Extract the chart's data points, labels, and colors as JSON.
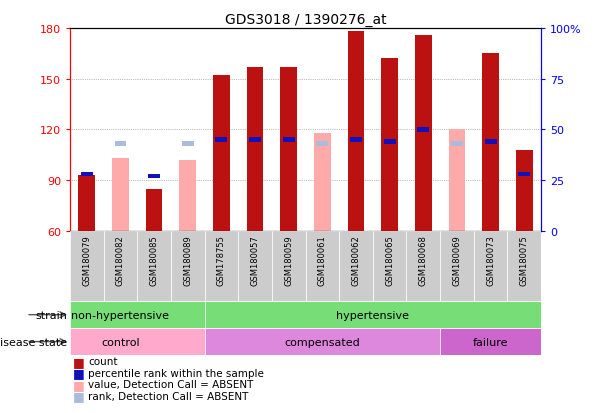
{
  "title": "GDS3018 / 1390276_at",
  "samples": [
    "GSM180079",
    "GSM180082",
    "GSM180085",
    "GSM180089",
    "GSM178755",
    "GSM180057",
    "GSM180059",
    "GSM180061",
    "GSM180062",
    "GSM180065",
    "GSM180068",
    "GSM180069",
    "GSM180073",
    "GSM180075"
  ],
  "count_values": [
    93,
    0,
    85,
    0,
    152,
    157,
    157,
    0,
    178,
    162,
    176,
    0,
    165,
    108
  ],
  "percentile_values": [
    28,
    0,
    27,
    0,
    45,
    45,
    45,
    0,
    45,
    44,
    50,
    0,
    44,
    28
  ],
  "absent_value_values": [
    0,
    103,
    0,
    102,
    0,
    0,
    0,
    118,
    0,
    0,
    0,
    120,
    0,
    0
  ],
  "absent_rank_values": [
    0,
    43,
    0,
    43,
    0,
    0,
    0,
    43,
    0,
    0,
    0,
    43,
    0,
    0
  ],
  "ylim_left": [
    60,
    180
  ],
  "ylim_right": [
    0,
    100
  ],
  "yticks_left": [
    60,
    90,
    120,
    150,
    180
  ],
  "yticks_right": [
    0,
    25,
    50,
    75,
    100
  ],
  "ytick_labels_right": [
    "0",
    "25",
    "50",
    "75",
    "100%"
  ],
  "color_count": "#bb1111",
  "color_percentile": "#1111bb",
  "color_absent_value": "#ffaaaa",
  "color_absent_rank": "#aabbdd",
  "bar_width": 0.5,
  "legend_items": [
    {
      "label": "count",
      "color": "#bb1111"
    },
    {
      "label": "percentile rank within the sample",
      "color": "#1111bb"
    },
    {
      "label": "value, Detection Call = ABSENT",
      "color": "#ffaaaa"
    },
    {
      "label": "rank, Detection Call = ABSENT",
      "color": "#aabbdd"
    }
  ],
  "strain_divider": 3.5,
  "disease_dividers": [
    3.5,
    10.5
  ],
  "xtick_area_color": "#cccccc",
  "strain_color": "#77dd77",
  "control_color": "#ffaacc",
  "compensated_color": "#dd88dd",
  "failure_color": "#cc66cc"
}
